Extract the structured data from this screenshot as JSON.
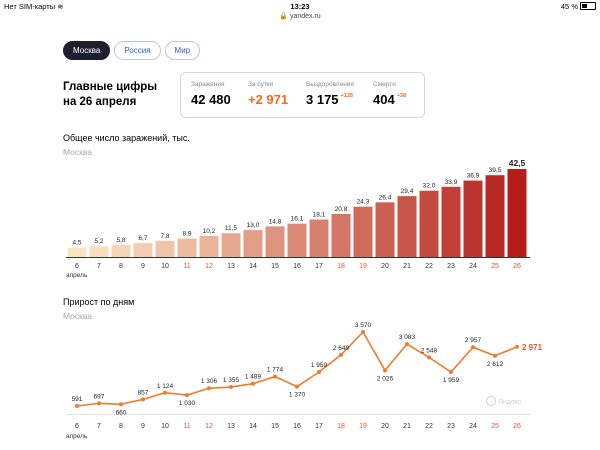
{
  "status_bar": {
    "carrier": "Нет SIM-карты",
    "time": "13:23",
    "battery": "45 %",
    "battery_level": 0.45
  },
  "url": "yandex.ru",
  "tabs": [
    {
      "label": "Москва",
      "active": true
    },
    {
      "label": "Россия",
      "active": false
    },
    {
      "label": "Мир",
      "active": false
    }
  ],
  "headline": {
    "line1": "Главные цифры",
    "line2": "на 26 апреля"
  },
  "stats": [
    {
      "label": "Заражения",
      "value": "42 480",
      "delta": ""
    },
    {
      "label": "За сутки",
      "value": "+2 971",
      "delta": ""
    },
    {
      "label": "Выздоровления",
      "value": "3 175",
      "delta": "+128"
    },
    {
      "label": "Смерти",
      "value": "404",
      "delta": "+38"
    }
  ],
  "weekend_color": "#e8532b",
  "chart_data": [
    {
      "type": "bar",
      "title": "Общее число заражений, тыс.",
      "subtitle": "Москва",
      "categories": [
        "6",
        "7",
        "8",
        "9",
        "10",
        "11",
        "12",
        "13",
        "14",
        "15",
        "16",
        "17",
        "18",
        "19",
        "20",
        "21",
        "22",
        "23",
        "24",
        "25",
        "26"
      ],
      "month_label": "апрель",
      "weekend_categories": [
        "11",
        "12",
        "18",
        "19",
        "25",
        "26"
      ],
      "values": [
        4.5,
        5.2,
        5.8,
        6.7,
        7.8,
        8.9,
        10.2,
        11.5,
        13.0,
        14.8,
        16.1,
        18.1,
        20.8,
        24.3,
        26.4,
        29.4,
        32.0,
        33.9,
        36.9,
        39.5,
        42.5
      ],
      "labels": [
        "4,5",
        "5,2",
        "5,8",
        "6,7",
        "7,8",
        "8,9",
        "10,2",
        "11,5",
        "13,0",
        "14,8",
        "16,1",
        "18,1",
        "20,8",
        "24,3",
        "26,4",
        "29,4",
        "32,0",
        "33,9",
        "36,9",
        "39,5",
        "42,5"
      ],
      "ylim": [
        0,
        42.5
      ],
      "color_low": "#fbe3c4",
      "color_high": "#b41e1a"
    },
    {
      "type": "line",
      "title": "Прирост по дням",
      "subtitle": "Москва",
      "categories": [
        "6",
        "7",
        "8",
        "9",
        "10",
        "11",
        "12",
        "13",
        "14",
        "15",
        "16",
        "17",
        "18",
        "19",
        "20",
        "21",
        "22",
        "23",
        "24",
        "25",
        "26"
      ],
      "month_label": "апрель",
      "weekend_categories": [
        "11",
        "12",
        "18",
        "19",
        "25",
        "26"
      ],
      "values": [
        591,
        697,
        660,
        857,
        1124,
        1030,
        1306,
        1355,
        1489,
        1774,
        1370,
        1959,
        2649,
        3570,
        2026,
        3083,
        2548,
        1959,
        2957,
        2612,
        2971
      ],
      "labels": [
        "591",
        "697",
        "660",
        "857",
        "1 124",
        "1 030",
        "1 306",
        "1 355",
        "1 489",
        "1 774",
        "1 370",
        "1 959",
        "2 649",
        "3 570",
        "2 026",
        "3 083",
        "2 548",
        "1 959",
        "2 957",
        "2 612",
        "2 971"
      ],
      "label_below": [
        false,
        false,
        true,
        false,
        false,
        true,
        false,
        false,
        false,
        false,
        true,
        false,
        false,
        false,
        true,
        false,
        false,
        true,
        false,
        true,
        false
      ],
      "ylim": [
        591,
        3570
      ],
      "color": "#f07a2a"
    }
  ],
  "watermark": "Яндекс"
}
